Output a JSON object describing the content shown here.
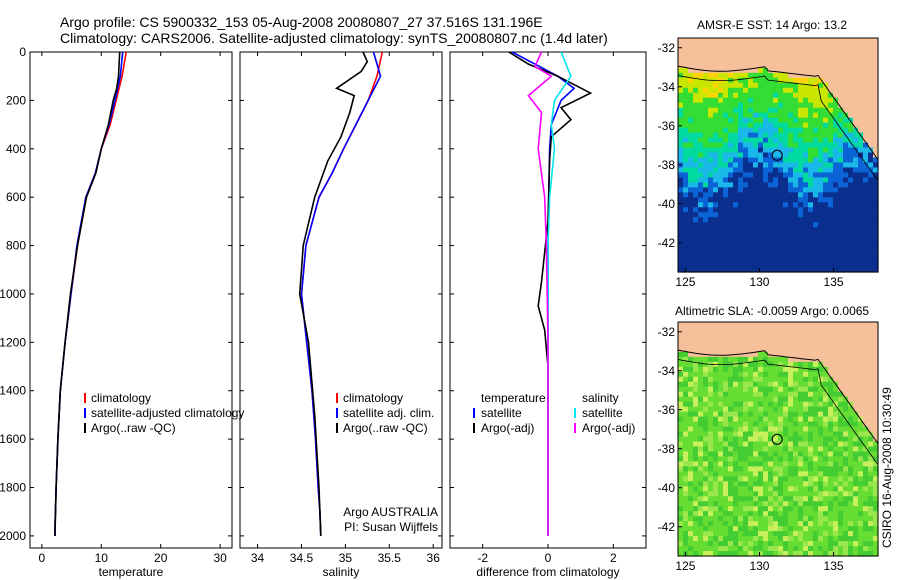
{
  "header": {
    "line1": "Argo profile: CS 5900332_153 05-Aug-2008 20080807_27 37.516S 131.196E",
    "line2": "Climatology: CARS2006. Satellite-adjusted climatology: synTS_20080807.nc (1.4d later)"
  },
  "side_label": "CSIRO 16-Aug-2008 10:30:49",
  "colors": {
    "climatology": "#ff0000",
    "satellite": "#0000ff",
    "argo": "#000000",
    "sal_satellite": "#00e5ee",
    "sal_argo": "#ff00ff",
    "land": "#f5c09a"
  },
  "chart_data": [
    {
      "type": "line",
      "xlabel": "temperature",
      "ylabel": "",
      "xlim": [
        -2,
        32
      ],
      "ylim": [
        2050,
        0
      ],
      "xticks": [
        0,
        10,
        20,
        30
      ],
      "yticks": [
        0,
        200,
        400,
        600,
        800,
        1000,
        1200,
        1400,
        1600,
        1800,
        2000
      ],
      "legend": {
        "placement": "lower-right",
        "entries": [
          "climatology",
          "satellite-adjusted climatology",
          "Argo(..raw -QC)"
        ]
      },
      "series": [
        {
          "name": "climatology",
          "color": "#ff0000",
          "x": [
            14.2,
            13.5,
            12.5,
            11.5,
            10.0,
            9.0,
            7.5,
            6.0,
            4.9,
            3.9,
            3.1,
            2.7,
            2.4,
            2.3,
            2.2,
            2.2
          ],
          "y": [
            0,
            100,
            200,
            300,
            400,
            500,
            600,
            800,
            1000,
            1200,
            1400,
            1600,
            1800,
            1900,
            1950,
            2000
          ]
        },
        {
          "name": "satellite-adjusted climatology",
          "color": "#0000ff",
          "x": [
            13.6,
            13.2,
            12.3,
            11.3,
            10.0,
            9.0,
            7.4,
            5.9,
            4.9,
            3.9,
            3.1,
            2.7,
            2.4,
            2.3,
            2.2,
            2.2
          ],
          "y": [
            0,
            100,
            200,
            300,
            400,
            500,
            600,
            800,
            1000,
            1200,
            1400,
            1600,
            1800,
            1900,
            1950,
            2000
          ]
        },
        {
          "name": "Argo(..raw -QC)",
          "color": "#000000",
          "x": [
            13.1,
            13.0,
            12.9,
            12.6,
            12.0,
            11.2,
            10.0,
            9.1,
            7.5,
            6.0,
            4.8,
            3.9,
            3.1,
            2.7,
            2.4,
            2.3,
            2.2
          ],
          "y": [
            0,
            50,
            100,
            150,
            200,
            300,
            400,
            500,
            600,
            800,
            1000,
            1200,
            1400,
            1600,
            1800,
            1900,
            2000
          ]
        }
      ]
    },
    {
      "type": "line",
      "xlabel": "salinity",
      "ylabel": "",
      "xlim": [
        33.8,
        36.1
      ],
      "ylim": [
        2050,
        0
      ],
      "xticks": [
        34,
        34.5,
        35,
        35.5,
        36
      ],
      "xtick_labels": [
        "34",
        "34.5",
        "35",
        "35.5",
        "36"
      ],
      "legend": {
        "placement": "lower-right",
        "entries": [
          "climatology",
          "satellite adj. clim.",
          "Argo(..raw -QC)"
        ]
      },
      "annotation": [
        "Argo AUSTRALIA",
        "PI: Susan Wijffels"
      ],
      "series": [
        {
          "name": "climatology",
          "color": "#ff0000",
          "x": [
            35.42,
            35.36,
            35.26,
            35.12,
            34.98,
            34.85,
            34.7,
            34.55,
            34.5,
            34.56,
            34.62,
            34.66,
            34.69,
            34.71,
            34.72
          ],
          "y": [
            0,
            100,
            200,
            300,
            400,
            500,
            600,
            800,
            1000,
            1200,
            1400,
            1600,
            1800,
            1900,
            2000
          ]
        },
        {
          "name": "satellite adj. clim.",
          "color": "#0000ff",
          "x": [
            35.32,
            35.4,
            35.26,
            35.12,
            34.98,
            34.85,
            34.7,
            34.55,
            34.5,
            34.56,
            34.62,
            34.66,
            34.69,
            34.71,
            34.72
          ],
          "y": [
            0,
            100,
            200,
            300,
            400,
            500,
            600,
            800,
            1000,
            1200,
            1400,
            1600,
            1800,
            1900,
            2000
          ]
        },
        {
          "name": "Argo(..raw -QC)",
          "color": "#000000",
          "x": [
            35.2,
            35.25,
            35.18,
            34.9,
            35.1,
            35.05,
            34.95,
            34.8,
            34.65,
            34.52,
            34.5,
            34.48,
            34.58,
            34.65,
            34.7,
            34.72
          ],
          "y": [
            0,
            40,
            80,
            150,
            180,
            250,
            350,
            450,
            600,
            800,
            900,
            1000,
            1200,
            1500,
            1800,
            2000
          ]
        }
      ]
    },
    {
      "type": "line",
      "xlabel": "difference from climatology",
      "ylabel": "",
      "xlim": [
        -3,
        3
      ],
      "ylim": [
        2050,
        0
      ],
      "xticks": [
        -2,
        0,
        2
      ],
      "legend": {
        "placement": "lower-center",
        "entries": [
          "temperature",
          "satellite",
          "Argo(-adj)",
          "salinity",
          "satellite",
          "Argo(-adj)"
        ]
      },
      "series": [
        {
          "name": "satellite",
          "color": "#0000ff",
          "x": [
            -1.1,
            -0.4,
            0.3,
            0.8,
            0.4,
            0.1,
            0.05,
            0.02,
            0,
            0,
            0,
            0
          ],
          "y": [
            0,
            50,
            100,
            150,
            200,
            300,
            400,
            600,
            800,
            1200,
            1600,
            2000
          ]
        },
        {
          "name": "Argo(-adj)",
          "color": "#000000",
          "x": [
            -1.2,
            -0.6,
            0.3,
            1.3,
            0.4,
            0.7,
            0.1,
            0.05,
            0,
            -0.2,
            -0.3,
            -0.1,
            0,
            0,
            0
          ],
          "y": [
            0,
            50,
            100,
            170,
            230,
            280,
            350,
            450,
            700,
            950,
            1050,
            1150,
            1300,
            1600,
            2000
          ]
        },
        {
          "name": "satellite",
          "color": "#00e5ee",
          "x": [
            0.4,
            0.7,
            0.2,
            0.1,
            0.2,
            0.05,
            0,
            0,
            0,
            0
          ],
          "y": [
            0,
            100,
            200,
            300,
            400,
            600,
            800,
            1200,
            1600,
            2000
          ]
        },
        {
          "name": "Argo(-adj)",
          "color": "#ff00ff",
          "x": [
            -0.2,
            -0.4,
            0.1,
            -0.6,
            -0.2,
            -0.3,
            -0.1,
            -0.05,
            0,
            0
          ],
          "y": [
            0,
            60,
            100,
            180,
            250,
            400,
            600,
            800,
            1200,
            2000
          ]
        }
      ]
    },
    {
      "type": "heatmap",
      "title": "AMSR-E SST: 14 Argo: 13.2",
      "xlim": [
        124.5,
        138
      ],
      "ylim": [
        -43.5,
        -31.5
      ],
      "xticks": [
        125,
        130,
        135
      ],
      "yticks": [
        -32,
        -34,
        -36,
        -38,
        -40,
        -42
      ],
      "marker": {
        "lon": 131.196,
        "lat": -37.516
      }
    },
    {
      "type": "heatmap",
      "title": "Altimetric SLA: -0.0059 Argo: 0.0065",
      "xlim": [
        124.5,
        138
      ],
      "ylim": [
        -43.5,
        -31.5
      ],
      "xticks": [
        125,
        130,
        135
      ],
      "yticks": [
        -32,
        -34,
        -36,
        -38,
        -40,
        -42
      ],
      "marker": {
        "lon": 131.196,
        "lat": -37.516
      }
    }
  ]
}
